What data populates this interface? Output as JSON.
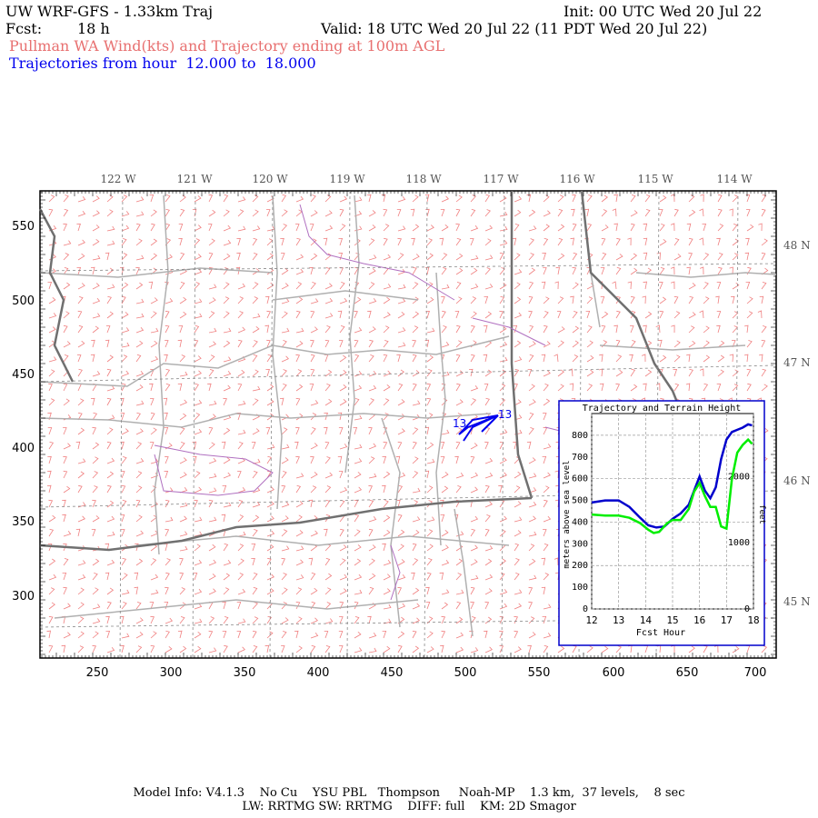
{
  "header": {
    "title": "UW WRF-GFS - 1.33km Traj",
    "init": "Init: 00 UTC Wed 20 Jul 22",
    "fcst_label": "Fcst:",
    "fcst_value": "18 h",
    "valid": "Valid: 18 UTC Wed 20 Jul 22 (11 PDT Wed 20 Jul 22)",
    "subtitle": "Pullman WA Wind(kts) and Trajectory ending at 100m AGL",
    "traj_range": "Trajectories from hour  12.000 to  18.000"
  },
  "colors": {
    "subtitle": "#e87070",
    "traj": "#0000ee",
    "barbs": "#f08080",
    "county": "#b0b0b0",
    "state": "#707070",
    "river": "#b070c0",
    "terrain": "#00ee00"
  },
  "map": {
    "lon_labels": [
      "122 W",
      "121 W",
      "120 W",
      "119 W",
      "118 W",
      "117 W",
      "116 W",
      "115 W",
      "114 W"
    ],
    "lat_labels": [
      "48 N",
      "47 N",
      "46 N",
      "45 N"
    ],
    "x_ticks": [
      "250",
      "300",
      "350",
      "400",
      "450",
      "500",
      "550",
      "600",
      "650",
      "700"
    ],
    "y_ticks": [
      "550",
      "500",
      "450",
      "400",
      "350",
      "300"
    ],
    "traj_labels": [
      "13",
      "13"
    ]
  },
  "chart_data": {
    "type": "line",
    "title": "Trajectory and Terrain Height",
    "xlabel": "Fcst Hour",
    "ylabel": "meters above sea level",
    "ylabel2": "feet",
    "xlim": [
      12,
      18
    ],
    "ylim": [
      0,
      900
    ],
    "x_ticks": [
      "12",
      "13",
      "14",
      "15",
      "16",
      "17",
      "18"
    ],
    "y_ticks": [
      "0",
      "100",
      "200",
      "300",
      "400",
      "500",
      "600",
      "700",
      "800"
    ],
    "y2_ticks": [
      "0",
      "1000",
      "2000"
    ],
    "series": [
      {
        "color": "#0000cc",
        "x": [
          12,
          12.5,
          13,
          13.4,
          13.8,
          14.1,
          14.4,
          14.7,
          15,
          15.3,
          15.6,
          15.8,
          16,
          16.2,
          16.4,
          16.6,
          16.8,
          17,
          17.2,
          17.4,
          17.6,
          17.8,
          17.95
        ],
        "y": [
          490,
          500,
          500,
          470,
          420,
          385,
          375,
          380,
          415,
          440,
          480,
          545,
          610,
          545,
          510,
          560,
          690,
          780,
          815,
          825,
          835,
          850,
          845
        ]
      },
      {
        "color": "#00ee00",
        "x": [
          12,
          12.5,
          13,
          13.4,
          13.8,
          14.1,
          14.3,
          14.5,
          14.8,
          15,
          15.3,
          15.6,
          15.8,
          16,
          16.2,
          16.4,
          16.6,
          16.8,
          17,
          17.2,
          17.4,
          17.6,
          17.8,
          17.95
        ],
        "y": [
          435,
          430,
          430,
          420,
          395,
          365,
          350,
          355,
          395,
          410,
          410,
          460,
          540,
          580,
          520,
          470,
          470,
          380,
          370,
          600,
          720,
          755,
          780,
          760
        ]
      }
    ]
  },
  "footer": {
    "line1": "Model Info: V4.1.3    No Cu    YSU PBL   Thompson     Noah-MP    1.3 km,  37 levels,    8 sec",
    "line2": "LW: RRTMG SW: RRTMG    DIFF: full    KM: 2D Smagor"
  }
}
